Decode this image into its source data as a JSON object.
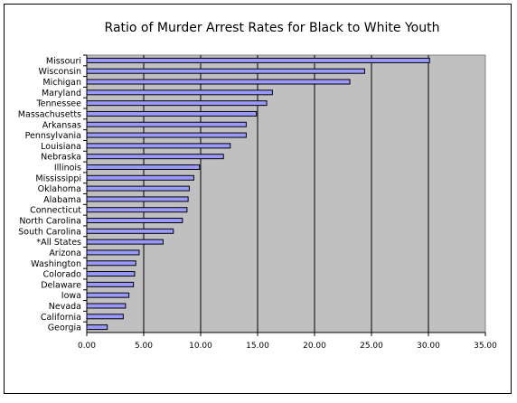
{
  "chart_data": {
    "type": "bar",
    "orientation": "horizontal",
    "title": "Ratio of Murder Arrest Rates for Black to White Youth",
    "xlabel": "",
    "ylabel": "",
    "xlim": [
      0,
      35
    ],
    "x_ticks": [
      "0.00",
      "5.00",
      "10.00",
      "15.00",
      "20.00",
      "25.00",
      "30.00",
      "35.00"
    ],
    "categories": [
      "Missouri",
      "Wisconsin",
      "Michigan",
      "Maryland",
      "Tennessee",
      "Massachusetts",
      "Arkansas",
      "Pennsylvania",
      "Louisiana",
      "Nebraska",
      "Illinois",
      "Mississippi",
      "Oklahoma",
      "Alabama",
      "Connecticut",
      "North Carolina",
      "South Carolina",
      "*All States",
      "Arizona",
      "Washington",
      "Colorado",
      "Delaware",
      "Iowa",
      "Nevada",
      "California",
      "Georgia"
    ],
    "values": [
      30.1,
      24.4,
      23.1,
      16.3,
      15.8,
      14.9,
      14.0,
      14.0,
      12.6,
      12.0,
      9.9,
      9.4,
      9.0,
      8.9,
      8.8,
      8.4,
      7.6,
      6.7,
      4.6,
      4.3,
      4.2,
      4.1,
      3.7,
      3.4,
      3.2,
      1.8
    ],
    "grid": true,
    "legend": "none",
    "colors": {
      "bar_fill": "#9999ff",
      "bar_stroke": "#000000",
      "plot_bg": "#c0c0c0",
      "grid": "#000000"
    }
  }
}
